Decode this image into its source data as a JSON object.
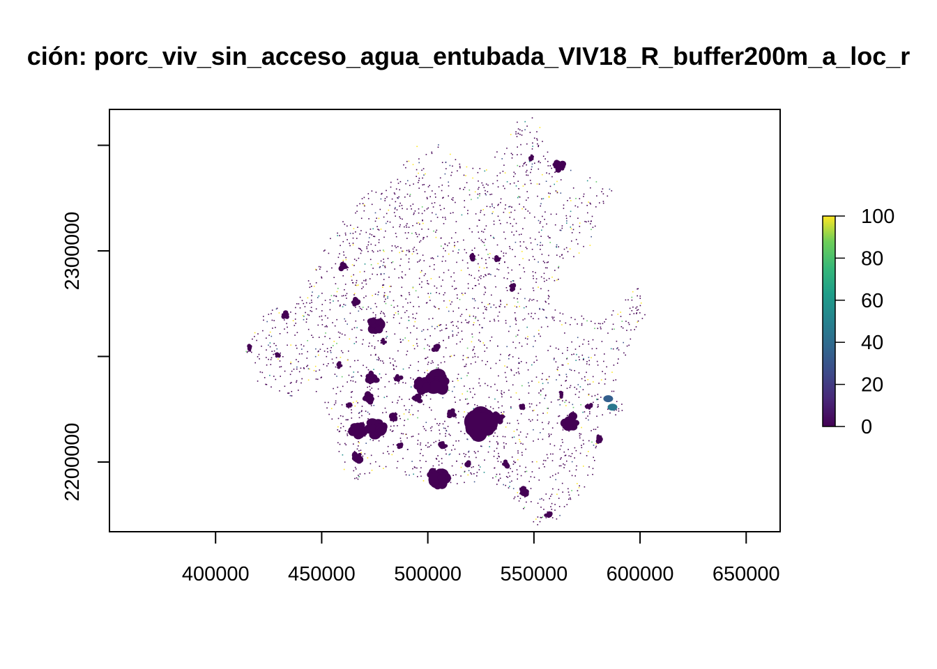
{
  "title": "ción:  porc_viv_sin_acceso_agua_entubada_VIV18_R_buffer200m_a_loc_r",
  "map": {
    "type": "raster",
    "x_ticks": [
      "400000",
      "450000",
      "500000",
      "550000",
      "600000",
      "650000"
    ],
    "x_tick_values": [
      400000,
      450000,
      500000,
      550000,
      600000,
      650000
    ],
    "y_ticks": [
      "2300000",
      "2200000"
    ],
    "y_tick_values": [
      2300000,
      2200000
    ],
    "y_minor_tick_values": [
      2250000,
      2350000
    ],
    "xlim": [
      350000,
      666000
    ],
    "ylim": [
      2167000,
      2367000
    ],
    "colors": {
      "low": "#440154",
      "mid_low": "#3b528b",
      "mid": "#21908c",
      "mid_high": "#5dc863",
      "high": "#fde725"
    },
    "settlements": [
      {
        "x": 525,
        "y": 2219,
        "r": 5.5
      },
      {
        "x": 504,
        "y": 2238,
        "r": 4.5
      },
      {
        "x": 497,
        "y": 2237,
        "r": 3
      },
      {
        "x": 476,
        "y": 2265,
        "r": 3
      },
      {
        "x": 474,
        "y": 2240,
        "r": 2.5
      },
      {
        "x": 467,
        "y": 2215,
        "r": 3
      },
      {
        "x": 476,
        "y": 2216,
        "r": 3.5
      },
      {
        "x": 467,
        "y": 2202,
        "r": 2
      },
      {
        "x": 472,
        "y": 2230,
        "r": 2
      },
      {
        "x": 505,
        "y": 2193,
        "r": 3.5
      },
      {
        "x": 567,
        "y": 2219,
        "r": 3
      },
      {
        "x": 562,
        "y": 2340,
        "r": 2.2
      },
      {
        "x": 460,
        "y": 2293,
        "r": 1.6
      },
      {
        "x": 433,
        "y": 2270,
        "r": 1.6
      },
      {
        "x": 416,
        "y": 2254,
        "r": 1.3
      },
      {
        "x": 504,
        "y": 2254,
        "r": 1.6
      },
      {
        "x": 533,
        "y": 2221,
        "r": 2
      },
      {
        "x": 546,
        "y": 2186,
        "r": 2
      },
      {
        "x": 484,
        "y": 2221,
        "r": 1.8
      },
      {
        "x": 495,
        "y": 2230,
        "r": 1.8
      },
      {
        "x": 507,
        "y": 2208,
        "r": 1.6
      },
      {
        "x": 511,
        "y": 2223,
        "r": 1.6
      },
      {
        "x": 519,
        "y": 2199,
        "r": 1.4
      },
      {
        "x": 537,
        "y": 2199,
        "r": 1.4
      },
      {
        "x": 540,
        "y": 2283,
        "r": 1.4
      },
      {
        "x": 521,
        "y": 2297,
        "r": 1.4
      },
      {
        "x": 533,
        "y": 2296,
        "r": 1.4
      },
      {
        "x": 486,
        "y": 2240,
        "r": 1.4
      },
      {
        "x": 466,
        "y": 2276,
        "r": 1.4
      },
      {
        "x": 463,
        "y": 2227,
        "r": 1.2
      },
      {
        "x": 458,
        "y": 2246,
        "r": 1.2
      },
      {
        "x": 581,
        "y": 2211,
        "r": 1.4
      },
      {
        "x": 576,
        "y": 2226,
        "r": 1.4
      },
      {
        "x": 557,
        "y": 2175,
        "r": 1.4
      },
      {
        "x": 563,
        "y": 2232,
        "r": 1.2
      },
      {
        "x": 429,
        "y": 2251,
        "r": 1.2
      },
      {
        "x": 544,
        "y": 2226,
        "r": 1.2
      },
      {
        "x": 479,
        "y": 2257,
        "r": 1.2
      },
      {
        "x": 549,
        "y": 2344,
        "r": 1.2
      },
      {
        "x": 487,
        "y": 2208,
        "r": 1.2
      }
    ],
    "highlight_patches": [
      {
        "x": 587,
        "y": 2226,
        "value": 40
      },
      {
        "x": 585,
        "y": 2230,
        "value": 30
      }
    ]
  },
  "legend": {
    "labels": [
      "100",
      "80",
      "60",
      "40",
      "20",
      "0"
    ],
    "values": [
      100,
      80,
      60,
      40,
      20,
      0
    ],
    "range": [
      0,
      100
    ]
  }
}
